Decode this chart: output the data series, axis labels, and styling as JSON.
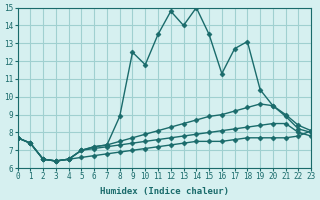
{
  "xlabel": "Humidex (Indice chaleur)",
  "background_color": "#d6f0f0",
  "grid_color": "#a0d0d0",
  "line_color": "#1a6b6b",
  "xlim": [
    0,
    23
  ],
  "ylim": [
    6,
    15
  ],
  "xticks": [
    0,
    1,
    2,
    3,
    4,
    5,
    6,
    7,
    8,
    9,
    10,
    11,
    12,
    13,
    14,
    15,
    16,
    17,
    18,
    19,
    20,
    21,
    22,
    23
  ],
  "yticks": [
    6,
    7,
    8,
    9,
    10,
    11,
    12,
    13,
    14,
    15
  ],
  "line1_x": [
    0,
    1,
    2,
    3,
    4,
    5,
    6,
    7,
    8,
    9,
    10,
    11,
    12,
    13,
    14,
    15,
    16,
    17,
    18,
    19,
    20,
    21,
    22,
    23
  ],
  "line1_y": [
    7.7,
    7.4,
    6.5,
    6.4,
    6.5,
    7.0,
    7.2,
    7.3,
    8.9,
    12.5,
    11.8,
    13.5,
    14.8,
    14.0,
    15.0,
    13.5,
    11.3,
    12.7,
    13.1,
    10.4,
    9.5,
    9.0,
    8.4,
    8.1
  ],
  "line2_x": [
    0,
    1,
    2,
    3,
    4,
    5,
    6,
    7,
    8,
    9,
    10,
    11,
    12,
    13,
    14,
    15,
    16,
    17,
    18,
    19,
    20,
    21,
    22,
    23
  ],
  "line2_y": [
    7.7,
    7.4,
    6.5,
    6.4,
    6.5,
    7.0,
    7.2,
    7.3,
    7.5,
    7.7,
    7.9,
    8.1,
    8.3,
    8.5,
    8.7,
    8.9,
    9.0,
    9.2,
    9.4,
    9.6,
    9.5,
    8.9,
    8.2,
    8.0
  ],
  "line3_x": [
    0,
    1,
    2,
    3,
    4,
    5,
    6,
    7,
    8,
    9,
    10,
    11,
    12,
    13,
    14,
    15,
    16,
    17,
    18,
    19,
    20,
    21,
    22,
    23
  ],
  "line3_y": [
    7.7,
    7.4,
    6.5,
    6.4,
    6.5,
    7.0,
    7.1,
    7.2,
    7.3,
    7.4,
    7.5,
    7.6,
    7.7,
    7.8,
    7.9,
    8.0,
    8.1,
    8.2,
    8.3,
    8.4,
    8.5,
    8.5,
    8.0,
    7.8
  ],
  "line4_x": [
    0,
    1,
    2,
    3,
    4,
    5,
    6,
    7,
    8,
    9,
    10,
    11,
    12,
    13,
    14,
    15,
    16,
    17,
    18,
    19,
    20,
    21,
    22,
    23
  ],
  "line4_y": [
    7.7,
    7.4,
    6.5,
    6.4,
    6.5,
    6.6,
    6.7,
    6.8,
    6.9,
    7.0,
    7.1,
    7.2,
    7.3,
    7.4,
    7.5,
    7.5,
    7.5,
    7.6,
    7.7,
    7.7,
    7.7,
    7.7,
    7.8,
    8.1
  ]
}
